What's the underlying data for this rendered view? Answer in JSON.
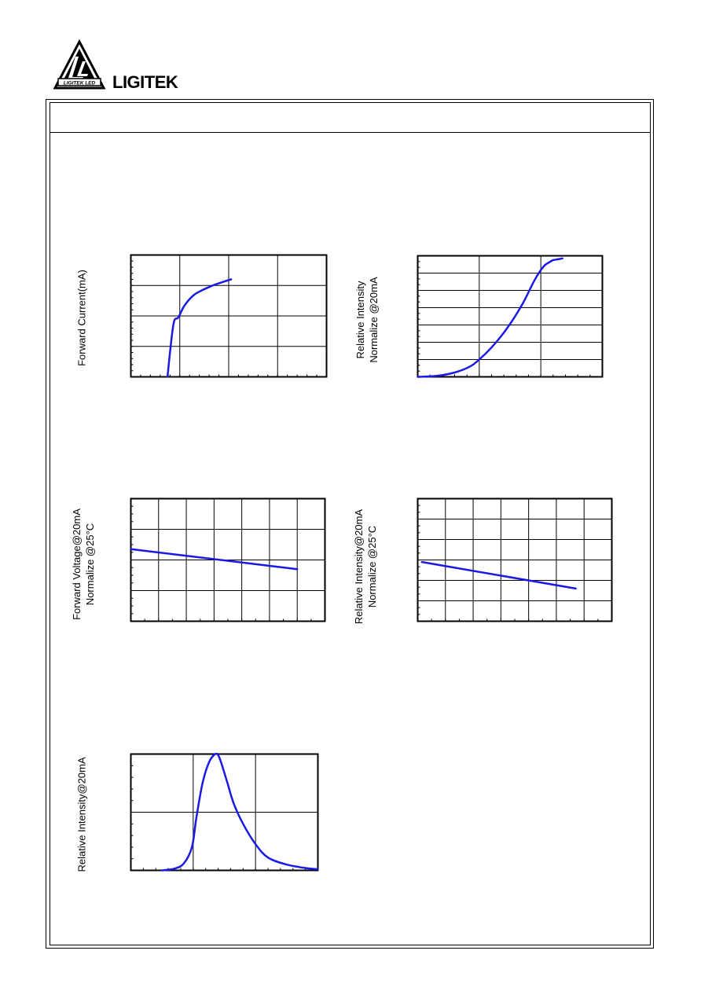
{
  "brand": {
    "name": "LIGITEK",
    "logo_text": "LIGITEK LED"
  },
  "charts": [
    {
      "id": "forward-current",
      "ylabel_lines": [
        "Forward Current(mA)"
      ],
      "chart_data": {
        "type": "line",
        "xlim": [
          0,
          4
        ],
        "ylim": [
          0,
          4
        ],
        "grid": true,
        "line_color": "#1a1ae6",
        "series": [
          {
            "x": [
              0.75,
              0.8,
              0.88,
              0.97,
              1.1,
              1.3,
              1.6,
              1.85,
              2.05
            ],
            "y": [
              0.0,
              0.8,
              1.8,
              1.95,
              2.35,
              2.7,
              2.95,
              3.1,
              3.2
            ]
          }
        ]
      }
    },
    {
      "id": "relative-intensity-vs-current",
      "ylabel_lines": [
        "Relative Intensity",
        "Normalize @20mA"
      ],
      "chart_data": {
        "type": "line",
        "xlim": [
          0,
          3
        ],
        "ylim": [
          0,
          7
        ],
        "grid": true,
        "line_color": "#1a1ae6",
        "series": [
          {
            "x": [
              0.0,
              0.3,
              0.6,
              0.85,
              1.0,
              1.2,
              1.45,
              1.7,
              1.9,
              2.05,
              2.15,
              2.2,
              2.28,
              2.35
            ],
            "y": [
              0.0,
              0.05,
              0.25,
              0.6,
              1.0,
              1.7,
              2.8,
              4.2,
              5.6,
              6.4,
              6.65,
              6.75,
              6.8,
              6.85
            ]
          }
        ]
      }
    },
    {
      "id": "forward-voltage-vs-temp",
      "ylabel_lines": [
        "Forward Voltage@20mA",
        "Normalize @25°C"
      ],
      "chart_data": {
        "type": "line",
        "xlim": [
          0,
          7
        ],
        "ylim": [
          0,
          4
        ],
        "grid": true,
        "line_color": "#1a1ae6",
        "series": [
          {
            "x": [
              0,
              6
            ],
            "y": [
              2.35,
              1.7
            ]
          }
        ]
      }
    },
    {
      "id": "relative-intensity-vs-temp",
      "ylabel_lines": [
        "Relative Intensity@20mA",
        "Normalize @25°C"
      ],
      "chart_data": {
        "type": "line",
        "xlim": [
          0,
          7
        ],
        "ylim": [
          0,
          6
        ],
        "grid": true,
        "line_color": "#1a1ae6",
        "series": [
          {
            "x": [
              0.15,
              5.7
            ],
            "y": [
              2.9,
              1.6
            ]
          }
        ]
      }
    },
    {
      "id": "spectrum",
      "ylabel_lines": [
        "Relative Intensity@20mA"
      ],
      "chart_data": {
        "type": "line",
        "xlim": [
          0,
          3
        ],
        "ylim": [
          0,
          2
        ],
        "grid": true,
        "line_color": "#1a1ae6",
        "series": [
          {
            "x": [
              0.5,
              0.7,
              0.85,
              0.98,
              1.05,
              1.15,
              1.25,
              1.35,
              1.4,
              1.45,
              1.55,
              1.65,
              1.8,
              2.0,
              2.2,
              2.5,
              2.8,
              3.0
            ],
            "y": [
              0.0,
              0.03,
              0.12,
              0.4,
              0.9,
              1.5,
              1.85,
              2.0,
              1.98,
              1.85,
              1.5,
              1.15,
              0.8,
              0.45,
              0.22,
              0.1,
              0.04,
              0.02
            ]
          }
        ]
      }
    }
  ]
}
